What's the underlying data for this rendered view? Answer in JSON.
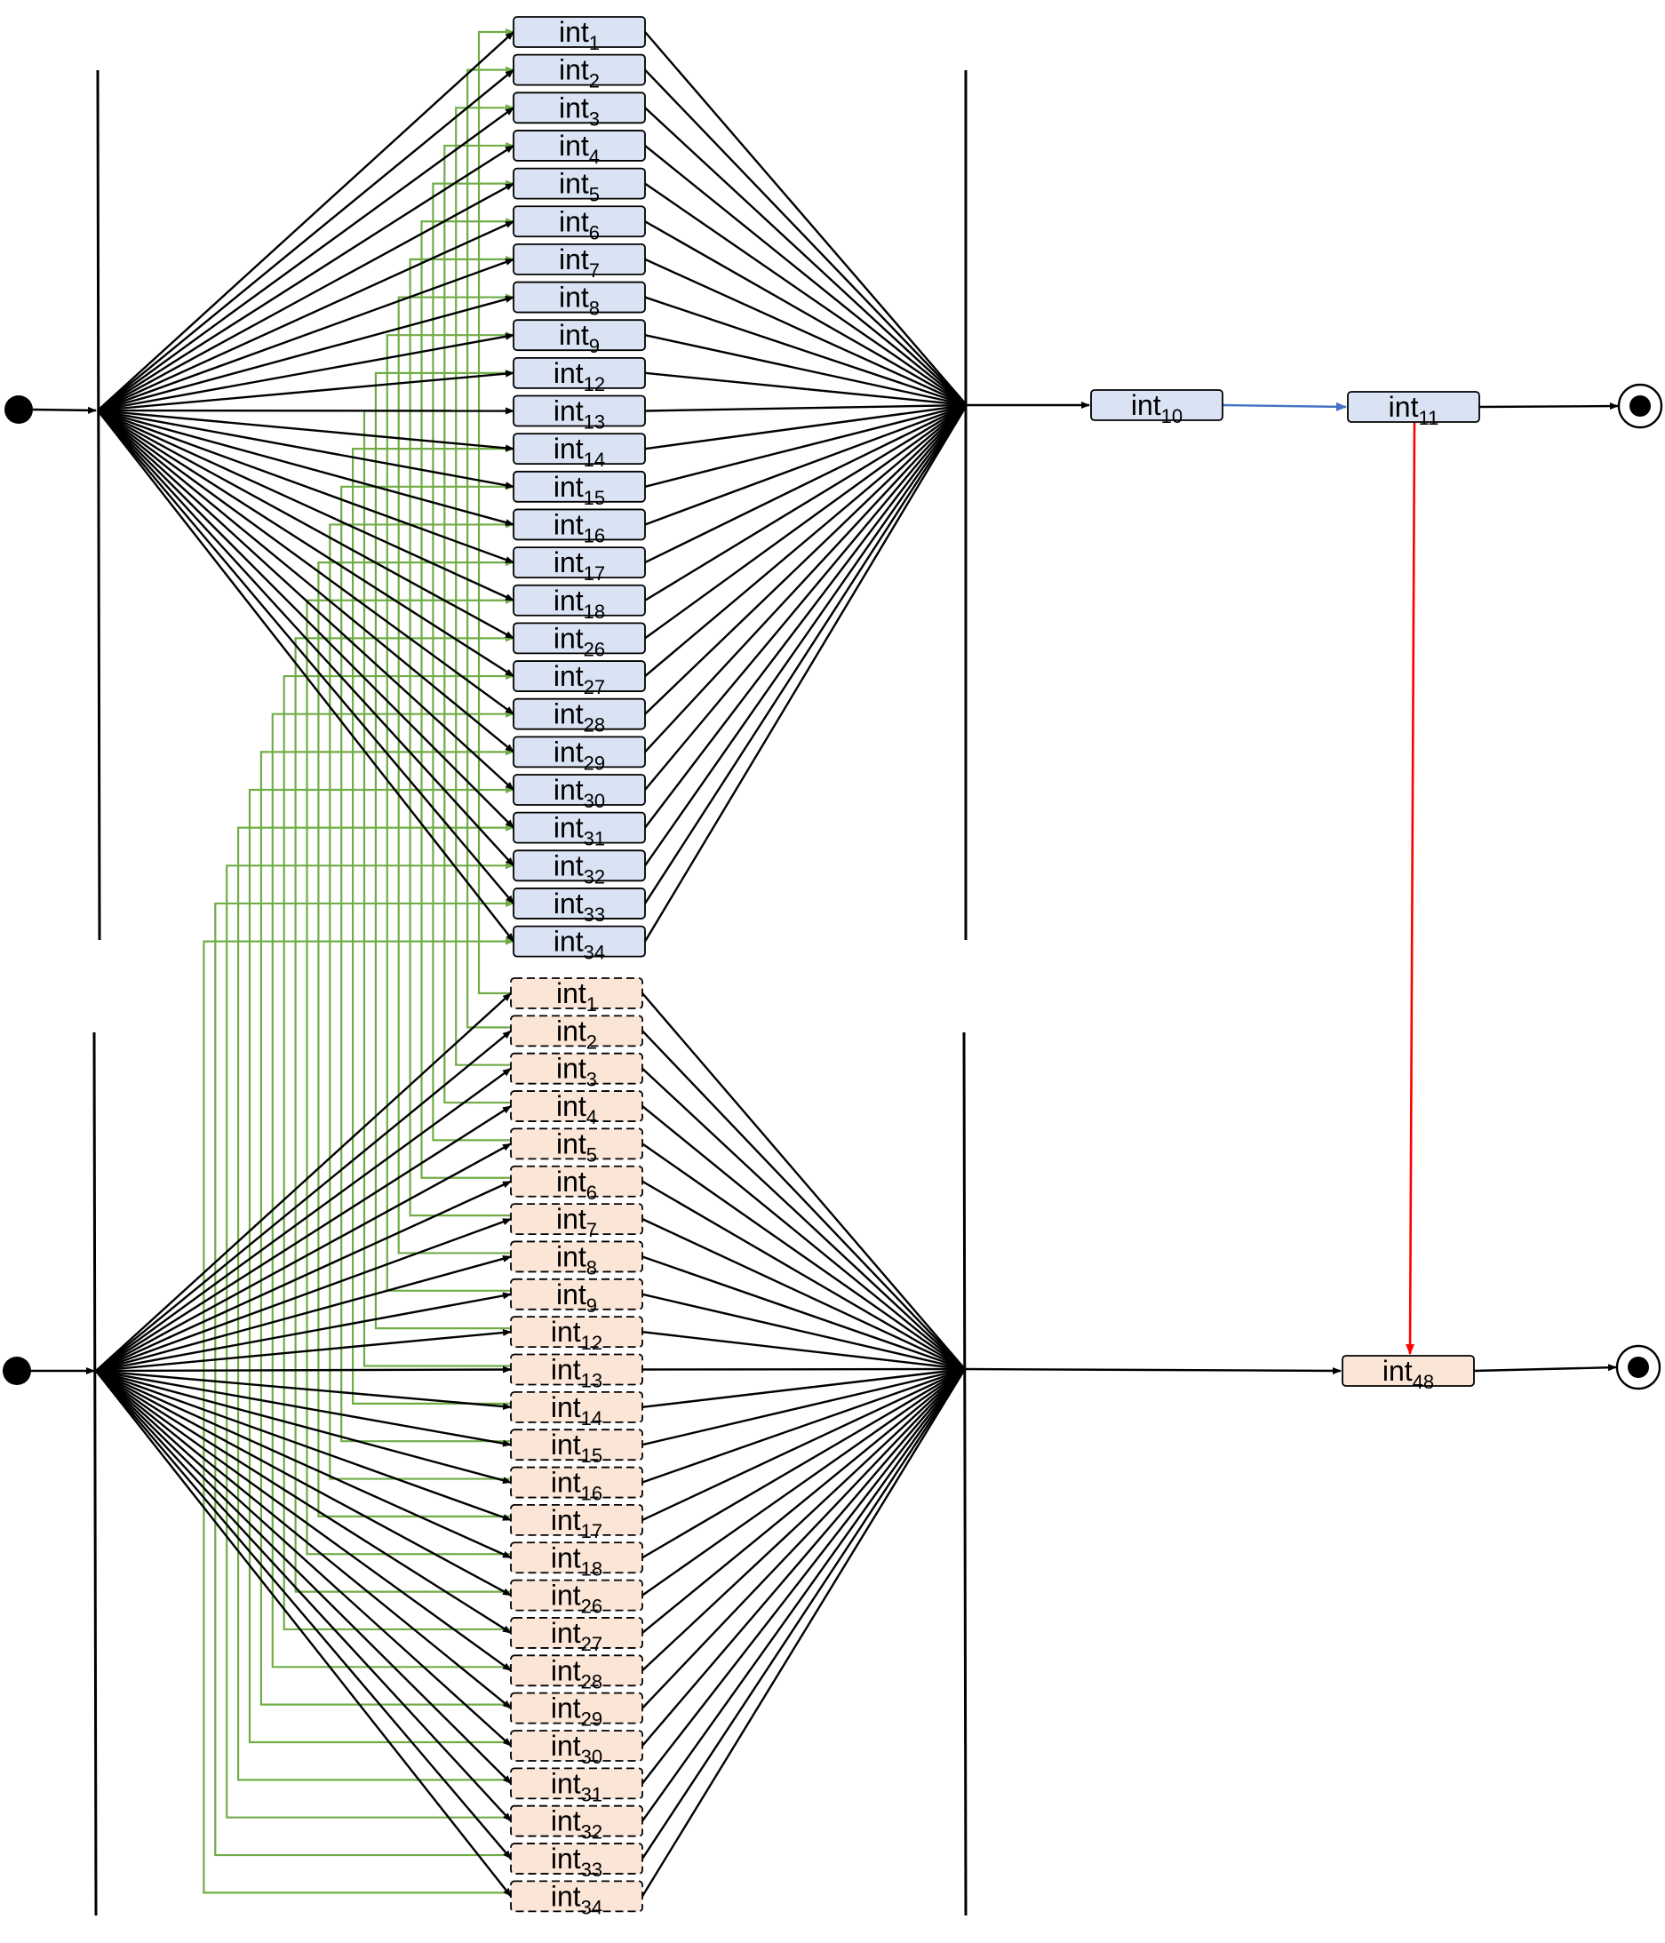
{
  "top_lane": {
    "activities": [
      {
        "base": "int",
        "sub": "1"
      },
      {
        "base": "int",
        "sub": "2"
      },
      {
        "base": "int",
        "sub": "3"
      },
      {
        "base": "int",
        "sub": "4"
      },
      {
        "base": "int",
        "sub": "5"
      },
      {
        "base": "int",
        "sub": "6"
      },
      {
        "base": "int",
        "sub": "7"
      },
      {
        "base": "int",
        "sub": "8"
      },
      {
        "base": "int",
        "sub": "9"
      },
      {
        "base": "int",
        "sub": "12"
      },
      {
        "base": "int",
        "sub": "13"
      },
      {
        "base": "int",
        "sub": "14"
      },
      {
        "base": "int",
        "sub": "15"
      },
      {
        "base": "int",
        "sub": "16"
      },
      {
        "base": "int",
        "sub": "17"
      },
      {
        "base": "int",
        "sub": "18"
      },
      {
        "base": "int",
        "sub": "26"
      },
      {
        "base": "int",
        "sub": "27"
      },
      {
        "base": "int",
        "sub": "28"
      },
      {
        "base": "int",
        "sub": "29"
      },
      {
        "base": "int",
        "sub": "30"
      },
      {
        "base": "int",
        "sub": "31"
      },
      {
        "base": "int",
        "sub": "32"
      },
      {
        "base": "int",
        "sub": "33"
      },
      {
        "base": "int",
        "sub": "34"
      }
    ],
    "after_join": [
      {
        "base": "int",
        "sub": "10"
      },
      {
        "base": "int",
        "sub": "11"
      }
    ]
  },
  "bottom_lane": {
    "activities": [
      {
        "base": "int",
        "sub": "1"
      },
      {
        "base": "int",
        "sub": "2"
      },
      {
        "base": "int",
        "sub": "3"
      },
      {
        "base": "int",
        "sub": "4"
      },
      {
        "base": "int",
        "sub": "5"
      },
      {
        "base": "int",
        "sub": "6"
      },
      {
        "base": "int",
        "sub": "7"
      },
      {
        "base": "int",
        "sub": "8"
      },
      {
        "base": "int",
        "sub": "9"
      },
      {
        "base": "int",
        "sub": "12"
      },
      {
        "base": "int",
        "sub": "13"
      },
      {
        "base": "int",
        "sub": "14"
      },
      {
        "base": "int",
        "sub": "15"
      },
      {
        "base": "int",
        "sub": "16"
      },
      {
        "base": "int",
        "sub": "17"
      },
      {
        "base": "int",
        "sub": "18"
      },
      {
        "base": "int",
        "sub": "26"
      },
      {
        "base": "int",
        "sub": "27"
      },
      {
        "base": "int",
        "sub": "28"
      },
      {
        "base": "int",
        "sub": "29"
      },
      {
        "base": "int",
        "sub": "30"
      },
      {
        "base": "int",
        "sub": "31"
      },
      {
        "base": "int",
        "sub": "32"
      },
      {
        "base": "int",
        "sub": "33"
      },
      {
        "base": "int",
        "sub": "34"
      }
    ],
    "after_join": [
      {
        "base": "int",
        "sub": "48"
      }
    ]
  },
  "colors": {
    "top_fill": "#dae3f3",
    "bottom_fill": "#fbe5d6",
    "flow_edge": "#000000",
    "green_link": "#70ad47",
    "blue_link": "#4472c4",
    "red_link": "#ff0000"
  }
}
